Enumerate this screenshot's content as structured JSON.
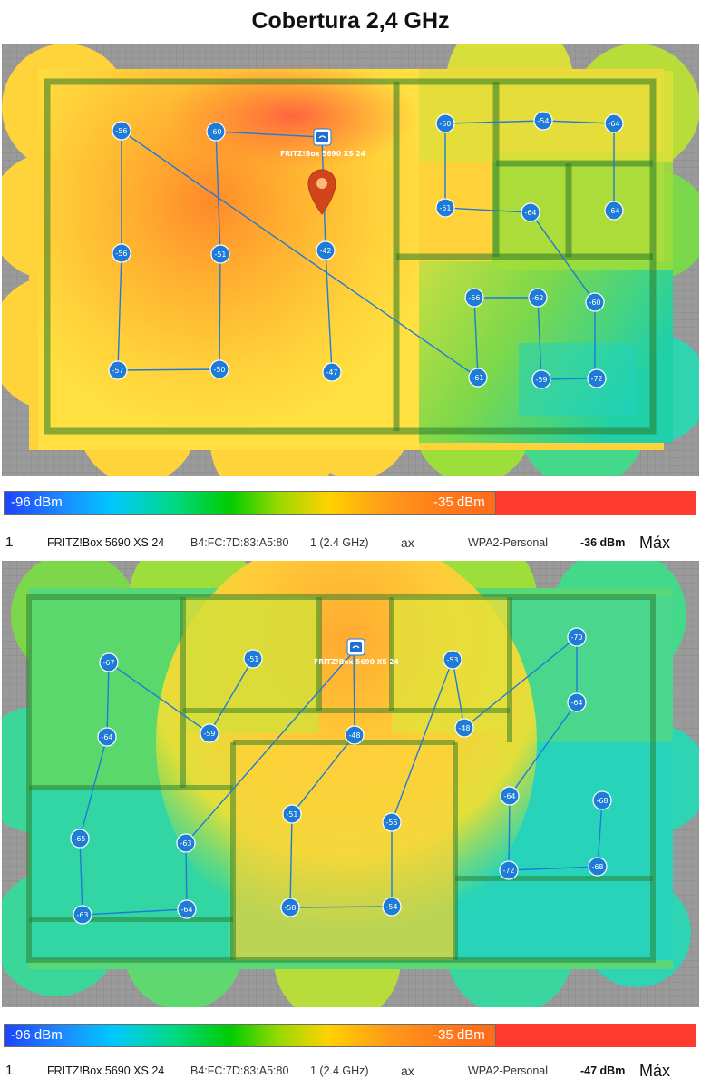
{
  "title": "Cobertura 2,4 GHz",
  "legend": {
    "min_label": "-96 dBm",
    "max_label": "-35 dBm"
  },
  "maps": [
    {
      "router_label": "FRITZ!Box 5690 XS 24",
      "measurements": [
        "-56",
        "-60",
        "-42",
        "-56",
        "-51",
        "-57",
        "-50",
        "-47",
        "-50",
        "-54",
        "-64",
        "-51",
        "-64",
        "-64",
        "-56",
        "-62",
        "-60",
        "-61",
        "-59",
        "-72"
      ]
    },
    {
      "router_label": "FRITZ!Box 5690 XS 24",
      "measurements": [
        "-67",
        "-51",
        "-53",
        "-70",
        "-64",
        "-59",
        "-48",
        "-48",
        "-64",
        "-64",
        "-68",
        "-65",
        "-63",
        "-51",
        "-56",
        "-72",
        "-68",
        "-63",
        "-64",
        "-58",
        "-54"
      ]
    }
  ],
  "rows": [
    {
      "index": "1",
      "name": "FRITZ!Box 5690 XS 24",
      "mac": "B4:FC:7D:83:A5:80",
      "channel": "1 (2.4 GHz)",
      "standard": "ax",
      "security": "WPA2-Personal",
      "signal": "-36 dBm",
      "max": "Máx"
    },
    {
      "index": "1",
      "name": "FRITZ!Box 5690 XS 24",
      "mac": "B4:FC:7D:83:A5:80",
      "channel": "1 (2.4 GHz)",
      "standard": "ax",
      "security": "WPA2-Personal",
      "signal": "-47 dBm",
      "max": "Máx"
    }
  ]
}
